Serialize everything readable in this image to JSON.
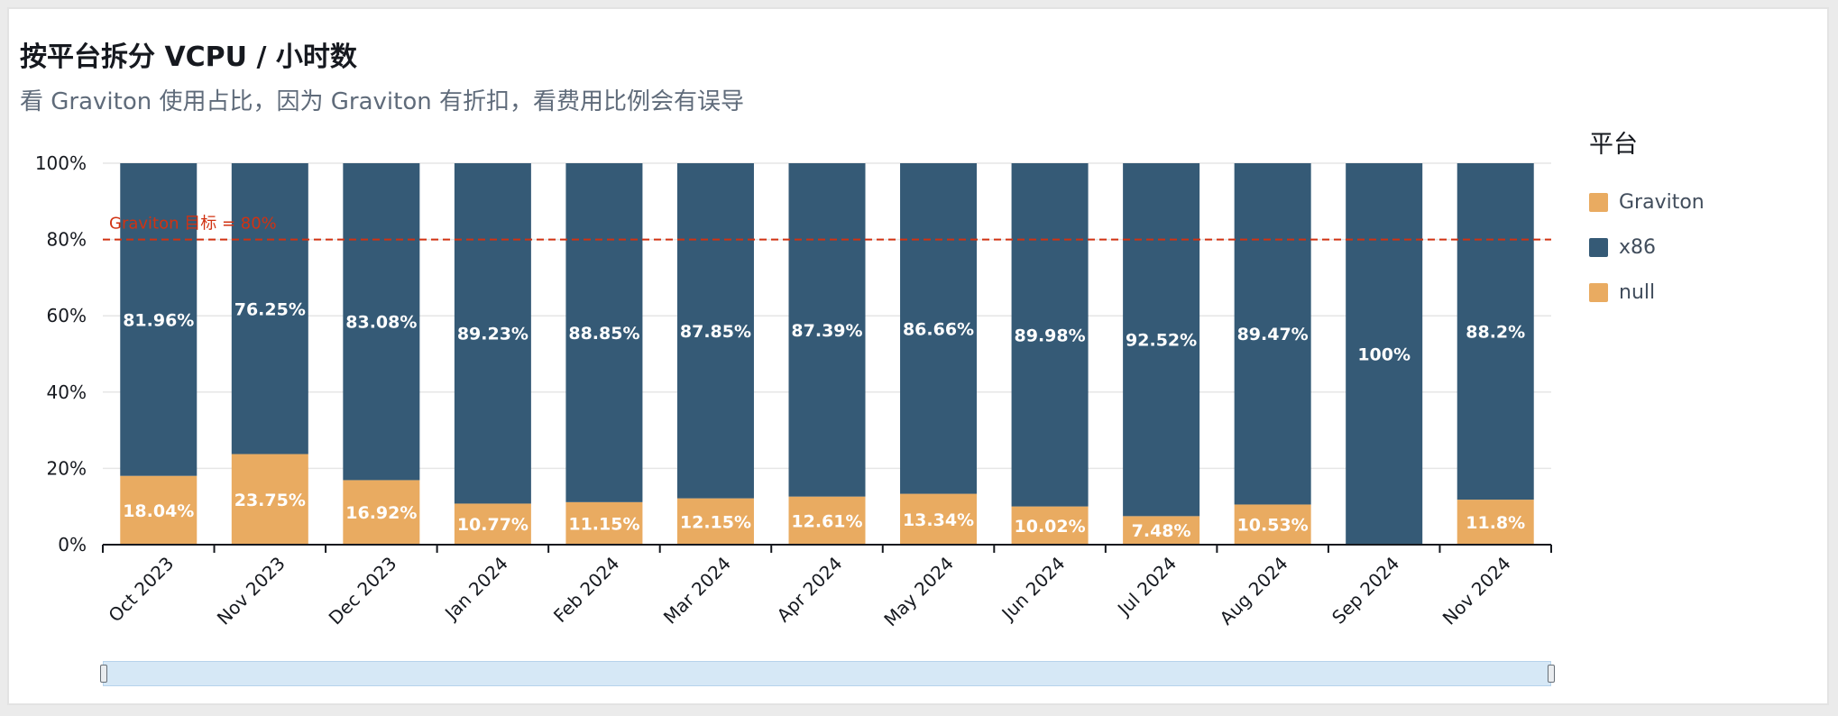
{
  "title": "按平台拆分 VCPU / 小时数",
  "subtitle": "看 Graviton 使用占比，因为 Graviton 有折扣，看费用比例会有误导",
  "legend": {
    "title": "平台",
    "items": [
      {
        "label": "Graviton",
        "color": "#e9ab61"
      },
      {
        "label": "x86",
        "color": "#355a76"
      },
      {
        "label": "null",
        "color": "#e9ab61"
      }
    ]
  },
  "chart_data": {
    "type": "bar",
    "stacked": true,
    "categories": [
      "Oct 2023",
      "Nov 2023",
      "Dec 2023",
      "Jan 2024",
      "Feb 2024",
      "Mar 2024",
      "Apr 2024",
      "May 2024",
      "Jun 2024",
      "Jul 2024",
      "Aug 2024",
      "Sep 2024",
      "Nov 2024"
    ],
    "series": [
      {
        "name": "Graviton",
        "color": "#e9ab61",
        "values": [
          18.04,
          23.75,
          16.92,
          10.77,
          11.15,
          12.15,
          12.61,
          13.34,
          10.02,
          7.48,
          10.53,
          0,
          11.8
        ],
        "labels": [
          "18.04%",
          "23.75%",
          "16.92%",
          "10.77%",
          "11.15%",
          "12.15%",
          "12.61%",
          "13.34%",
          "10.02%",
          "7.48%",
          "10.53%",
          "",
          "11.8%"
        ]
      },
      {
        "name": "x86",
        "color": "#355a76",
        "values": [
          81.96,
          76.25,
          83.08,
          89.23,
          88.85,
          87.85,
          87.39,
          86.66,
          89.98,
          92.52,
          89.47,
          100,
          88.2
        ],
        "labels": [
          "81.96%",
          "76.25%",
          "83.08%",
          "89.23%",
          "88.85%",
          "87.85%",
          "87.39%",
          "86.66%",
          "89.98%",
          "92.52%",
          "89.47%",
          "100%",
          "88.2%"
        ]
      }
    ],
    "y_ticks": [
      "0%",
      "20%",
      "40%",
      "60%",
      "80%",
      "100%"
    ],
    "ylim": [
      0,
      100
    ],
    "grid": true,
    "reference_line": {
      "value": 80,
      "label": "Graviton 目标 = 80%",
      "color": "#d13212"
    },
    "legend_position": "right"
  }
}
